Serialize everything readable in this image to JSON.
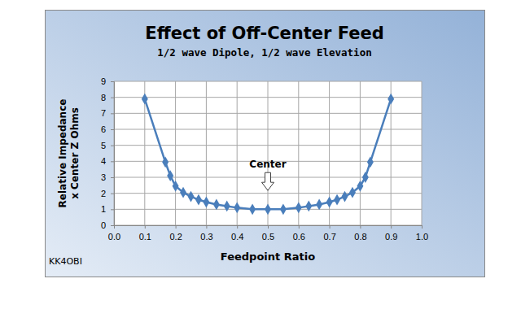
{
  "chart_data": {
    "type": "line",
    "title": "Effect of Off-Center Feed",
    "subtitle": "1/2 wave Dipole, 1/2 wave Elevation",
    "xlabel": "Feedpoint Ratio",
    "ylabel": [
      "Relative Impedance",
      "x Center Z Ohms"
    ],
    "credit": "KK4OBI",
    "annotations": [
      {
        "text": "Center",
        "x": 0.5,
        "y": 3.6
      }
    ],
    "x": [
      0.1,
      0.167,
      0.183,
      0.2,
      0.225,
      0.25,
      0.275,
      0.3,
      0.333,
      0.367,
      0.4,
      0.45,
      0.5,
      0.55,
      0.6,
      0.633,
      0.667,
      0.7,
      0.725,
      0.75,
      0.775,
      0.8,
      0.817,
      0.833,
      0.9
    ],
    "values": [
      7.9,
      3.95,
      3.1,
      2.45,
      2.05,
      1.8,
      1.6,
      1.45,
      1.3,
      1.2,
      1.1,
      1.0,
      1.0,
      1.0,
      1.1,
      1.2,
      1.3,
      1.45,
      1.6,
      1.8,
      2.05,
      2.45,
      3.0,
      3.95,
      7.9
    ],
    "color": "#4a7ebb",
    "marker": "diamond",
    "line_style": "solid",
    "xlim": [
      0,
      1
    ],
    "xticks": [
      {
        "value": 0,
        "label": "0.0"
      },
      0.1,
      0.2,
      0.3,
      0.4,
      0.5,
      0.6,
      0.7,
      0.8,
      0.9,
      {
        "value": 1,
        "label": "1.0"
      }
    ],
    "ylim": [
      0,
      9
    ],
    "yticks": [
      0,
      1,
      2,
      3,
      4,
      5,
      6,
      7,
      8,
      9
    ],
    "grid": true
  }
}
